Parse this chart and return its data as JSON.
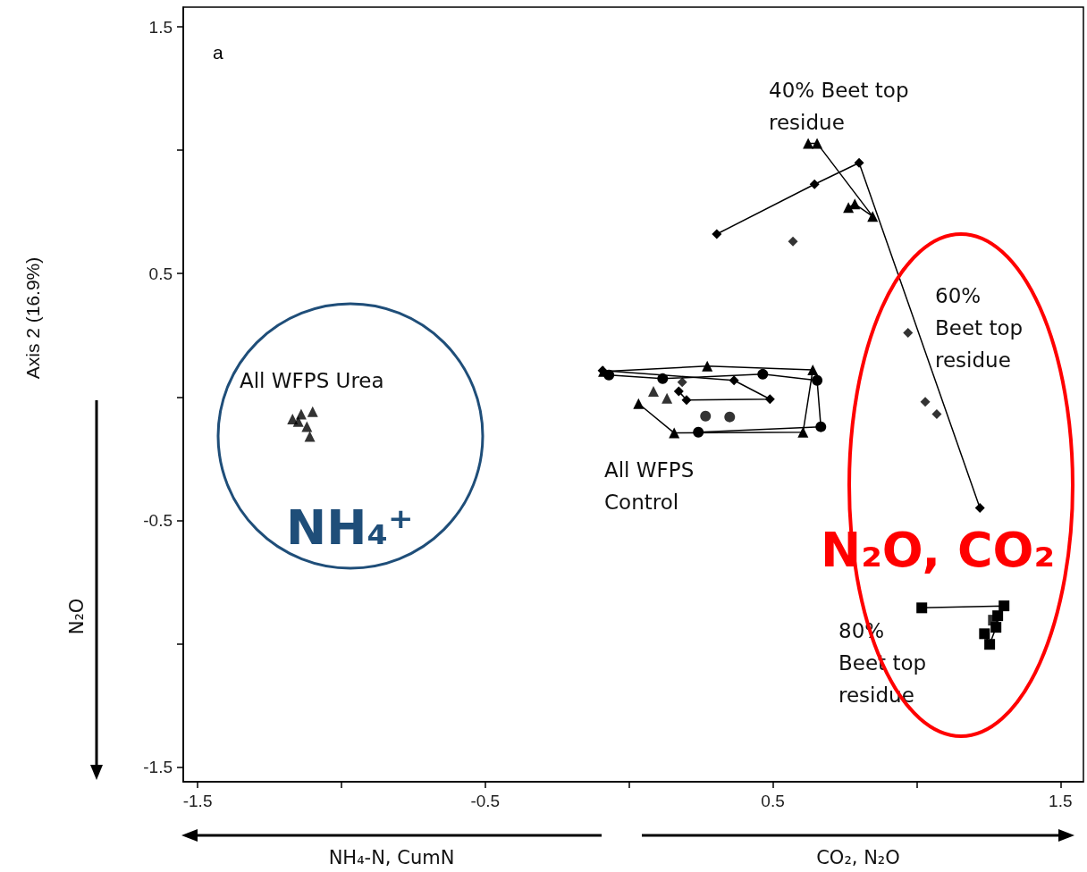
{
  "chart_data": {
    "type": "scatter",
    "title": "a",
    "xlim": [
      -1.55,
      1.58
    ],
    "ylim": [
      -1.56,
      1.58
    ],
    "xticks": [
      -1.5,
      {
        "value": -1,
        "label": null
      },
      -0.5,
      {
        "value": 0,
        "label": null
      },
      0.5,
      {
        "value": 1,
        "label": null
      },
      1.5
    ],
    "yticks": [
      -1.5,
      {
        "value": -1,
        "label": null
      },
      -0.5,
      {
        "value": 0,
        "label": null
      },
      0.5,
      {
        "value": 1,
        "label": null
      },
      1.5
    ],
    "series": [
      {
        "type": "line",
        "color": "#000000",
        "marker": "triangle",
        "x": [
          0.623,
          0.654,
          0.847,
          0.785,
          0.763
        ],
        "values": [
          1.028,
          1.028,
          0.732,
          0.782,
          0.768
        ]
      },
      {
        "type": "line",
        "color": "#000000",
        "marker": "diamond",
        "x": [
          0.305,
          0.645,
          0.8,
          1.22
        ],
        "values": [
          0.66,
          0.862,
          0.949,
          -0.45
        ]
      },
      {
        "type": "line",
        "color": "#000000",
        "marker": "triangle",
        "x": [
          -0.089,
          0.272,
          0.639,
          0.605,
          0.157,
          0.033
        ],
        "values": [
          0.103,
          0.125,
          0.11,
          -0.143,
          -0.146,
          -0.027
        ]
      },
      {
        "type": "line",
        "color": "#000000",
        "marker": "circle",
        "x": [
          -0.07,
          0.117,
          0.465,
          0.654,
          0.667,
          0.241
        ],
        "values": [
          0.089,
          0.074,
          0.092,
          0.067,
          -0.121,
          -0.143
        ]
      },
      {
        "type": "line",
        "color": "#000000",
        "marker": "diamond",
        "x": [
          -0.092,
          0.365,
          0.49,
          0.2,
          0.173
        ],
        "values": [
          0.107,
          0.067,
          -0.009,
          -0.013,
          0.023
        ]
      },
      {
        "type": "line",
        "color": "#000000",
        "marker": "square",
        "x": [
          1.018,
          1.304,
          1.282,
          1.276,
          1.254,
          1.236
        ],
        "values": [
          -0.855,
          -0.847,
          -0.887,
          -0.934,
          -1.003,
          -0.96
        ]
      },
      {
        "type": "scatter",
        "color": "#000000",
        "marker": "diamond",
        "x": [
          0.57,
          0.97,
          1.03,
          1.07
        ],
        "values": [
          0.63,
          0.26,
          -0.02,
          -0.07
        ]
      },
      {
        "type": "scatter",
        "color": "#000000",
        "marker": "triangle",
        "x": [
          0.085,
          0.132
        ],
        "values": [
          0.023,
          -0.005
        ]
      },
      {
        "type": "scatter",
        "color": "#000000",
        "marker": "circle",
        "x": [
          0.266,
          0.35
        ],
        "values": [
          -0.078,
          -0.081
        ]
      },
      {
        "type": "scatter",
        "color": "#000000",
        "marker": "diamond",
        "x": [
          0.185
        ],
        "values": [
          0.06
        ]
      },
      {
        "type": "scatter",
        "color": "#000000",
        "marker": "square",
        "x": [
          1.267
        ],
        "values": [
          -0.905
        ]
      },
      {
        "type": "scatter",
        "color": "#000000",
        "marker": "triangle",
        "x": [
          -1.17,
          -1.14,
          -1.1,
          -1.12,
          -1.15,
          -1.11
        ],
        "values": [
          -0.09,
          -0.07,
          -0.06,
          -0.12,
          -0.1,
          -0.16
        ]
      }
    ],
    "annotations": [
      "40% Beet top\nresidue",
      "60%\nBeet top\nresidue",
      "All WFPS Urea",
      "All WFPS\nControl",
      "80%\nBeet top\nresidue",
      "NH₄⁺",
      "N₂O, CO₂",
      "Axis 2 (16.9%)",
      "NH₄-N, CumN",
      "CO₂, N₂O",
      "N₂O"
    ]
  }
}
